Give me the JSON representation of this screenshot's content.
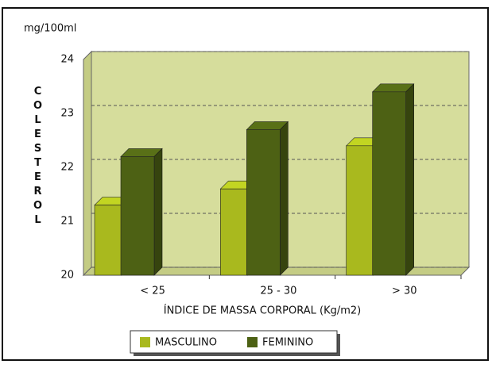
{
  "chart_data": {
    "type": "bar3d",
    "unit_label": "mg/100ml",
    "y_label": "COLESTEROL",
    "x_label": "ÍNDICE DE MASSA CORPORAL (Kg/m2)",
    "categories": [
      "< 25",
      "25 - 30",
      "> 30"
    ],
    "series": [
      {
        "name": "MASCULINO",
        "color": "#a9b91e",
        "values": [
          21.3,
          21.6,
          22.4
        ]
      },
      {
        "name": "FEMININO",
        "color": "#4d6114",
        "values": [
          22.2,
          22.7,
          23.4
        ]
      }
    ],
    "ylim": [
      20,
      24
    ],
    "yticks": [
      20,
      21,
      22,
      23,
      24
    ],
    "grid": true
  }
}
